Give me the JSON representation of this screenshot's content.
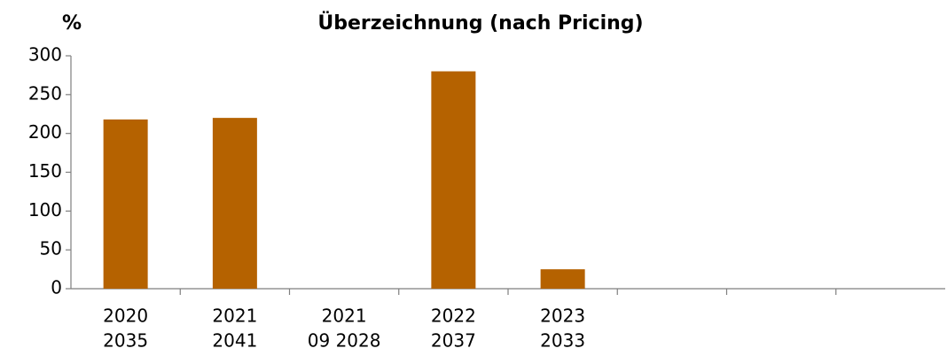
{
  "chart_data": {
    "type": "bar",
    "title": "Überzeichnung (nach Pricing)",
    "y_label": "%",
    "categories": [
      [
        "2020",
        "2035"
      ],
      [
        "2021",
        "2041"
      ],
      [
        "2021",
        "09 2028"
      ],
      [
        "2022",
        "2037"
      ],
      [
        "2023",
        "2033"
      ],
      null,
      null,
      null
    ],
    "values": [
      218,
      220,
      null,
      280,
      25,
      null,
      null,
      null
    ],
    "color": "#b56200",
    "ylim": [
      0,
      300
    ],
    "yticks": [
      0,
      50,
      100,
      150,
      200,
      250,
      300
    ],
    "grid": false
  }
}
